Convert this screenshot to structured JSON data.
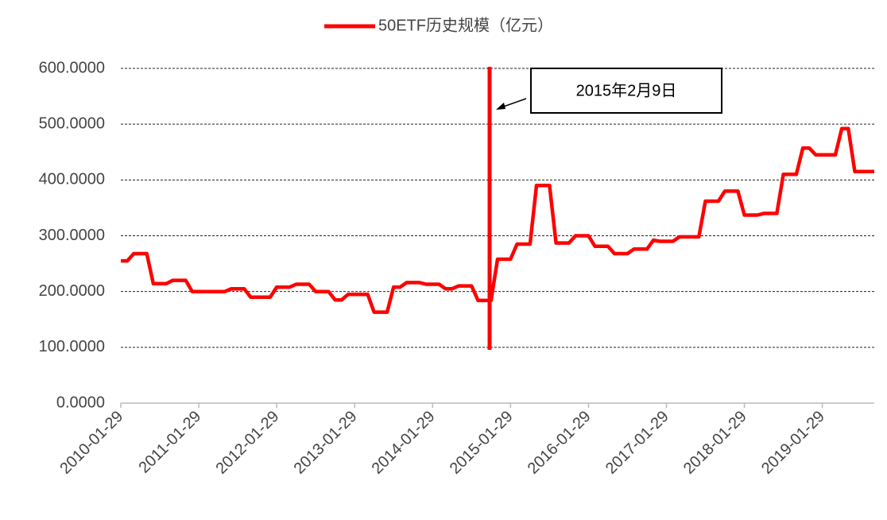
{
  "chart_data": {
    "type": "line",
    "categories": [
      "2010-01-29",
      null,
      null,
      null,
      null,
      null,
      null,
      null,
      null,
      null,
      null,
      null,
      "2011-01-29",
      null,
      null,
      null,
      null,
      null,
      null,
      null,
      null,
      null,
      null,
      null,
      "2012-01-29",
      null,
      null,
      null,
      null,
      null,
      null,
      null,
      null,
      null,
      null,
      null,
      "2013-01-29",
      null,
      null,
      null,
      null,
      null,
      null,
      null,
      null,
      null,
      null,
      null,
      "2014-01-29",
      null,
      null,
      null,
      null,
      null,
      null,
      null,
      null,
      null,
      null,
      null,
      "2015-01-29",
      null,
      null,
      null,
      null,
      null,
      null,
      null,
      null,
      null,
      null,
      null,
      "2016-01-29",
      null,
      null,
      null,
      null,
      null,
      null,
      null,
      null,
      null,
      null,
      null,
      "2017-01-29",
      null,
      null,
      null,
      null,
      null,
      null,
      null,
      null,
      null,
      null,
      null,
      "2018-01-29",
      null,
      null,
      null,
      null,
      null,
      null,
      null,
      null,
      null,
      null,
      null,
      "2019-01-29",
      null,
      null,
      null,
      null,
      null,
      null,
      null,
      null
    ],
    "series": [
      {
        "name": "50ETF历史规模（亿元）",
        "color": "#ff0000",
        "values": [
          255,
          255,
          268,
          268,
          268,
          214,
          214,
          214,
          220,
          220,
          220,
          200,
          200,
          200,
          200,
          200,
          200,
          205,
          205,
          205,
          190,
          190,
          190,
          190,
          208,
          208,
          208,
          213,
          213,
          213,
          200,
          200,
          200,
          185,
          185,
          195,
          195,
          195,
          195,
          163,
          163,
          163,
          208,
          208,
          216,
          216,
          216,
          213,
          213,
          213,
          205,
          205,
          210,
          210,
          210,
          184,
          184,
          184,
          258,
          258,
          258,
          285,
          285,
          285,
          390,
          390,
          390,
          287,
          287,
          287,
          300,
          300,
          300,
          281,
          281,
          281,
          268,
          268,
          268,
          276,
          276,
          276,
          292,
          290,
          290,
          290,
          298,
          298,
          298,
          298,
          362,
          362,
          362,
          380,
          380,
          380,
          337,
          337,
          337,
          340,
          340,
          340,
          410,
          410,
          410,
          457,
          457,
          445,
          445,
          445,
          445,
          492,
          492,
          415,
          415,
          415,
          415
        ]
      }
    ],
    "ylim": [
      0,
      600
    ],
    "yticks": [
      {
        "value": 0,
        "label": "0.0000"
      },
      {
        "value": 100,
        "label": "100.0000"
      },
      {
        "value": 200,
        "label": "200.0000"
      },
      {
        "value": 300,
        "label": "300.0000"
      },
      {
        "value": 400,
        "label": "400.0000"
      },
      {
        "value": 500,
        "label": "500.0000"
      },
      {
        "value": 600,
        "label": "600.0000"
      }
    ],
    "grid": true,
    "annotation": "2015年2月9日"
  }
}
